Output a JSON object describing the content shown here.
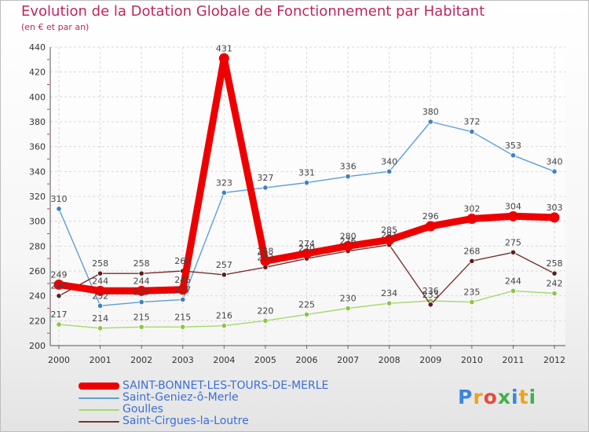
{
  "title": "Evolution de la Dotation Globale de Fonctionnement par Habitant",
  "subtitle": "(en € et par an)",
  "logo": {
    "text": "Proxiti",
    "letter_colors": [
      "#3a86e0",
      "#f0a11c",
      "#e84a3a",
      "#43b04a",
      "#3a86e0",
      "#f0a11c",
      "#43b04a"
    ]
  },
  "chart_data": {
    "type": "line",
    "title": "Evolution de la Dotation Globale de Fonctionnement par Habitant",
    "subtitle": "(en € et par an)",
    "xlabel": "",
    "ylabel": "",
    "x": [
      "2000",
      "2001",
      "2002",
      "2003",
      "2004",
      "2005",
      "2006",
      "2007",
      "2008",
      "2009",
      "2010",
      "2011",
      "2012"
    ],
    "ylim": [
      200,
      440
    ],
    "yticks": [
      200,
      220,
      240,
      260,
      280,
      300,
      320,
      340,
      360,
      380,
      400,
      420,
      440
    ],
    "grid": true,
    "legend_position": "bottom-left",
    "series": [
      {
        "name": "Saint-Geniez-ô-Merle",
        "color": "#5f9fd6",
        "marker": "#3d82c4",
        "emphasis": false,
        "values": [
          310,
          232,
          235,
          237,
          323,
          327,
          331,
          336,
          340,
          380,
          372,
          353,
          340
        ],
        "labels": [
          "310",
          "232",
          "235",
          "237",
          "323",
          "327",
          "331",
          "336",
          "340",
          "380",
          "372",
          "353",
          "340"
        ]
      },
      {
        "name": "Goulles",
        "color": "#a6d86e",
        "marker": "#8cc63f",
        "emphasis": false,
        "values": [
          217,
          214,
          215,
          215,
          216,
          220,
          225,
          230,
          234,
          236,
          235,
          244,
          242
        ],
        "labels": [
          "217",
          "214",
          "215",
          "215",
          "216",
          "220",
          "225",
          "230",
          "234",
          "236",
          "235",
          "244",
          "242"
        ]
      },
      {
        "name": "Saint-Cirgues-la-Loutre",
        "color": "#7a3030",
        "marker": "#5c1f1f",
        "emphasis": false,
        "values": [
          240,
          258,
          258,
          260,
          257,
          263,
          270,
          276,
          281,
          233,
          268,
          275,
          258
        ],
        "labels": [
          "240",
          "258",
          "258",
          "260",
          "257",
          "263",
          "270",
          "276",
          "281",
          "233",
          "268",
          "275",
          "258"
        ]
      },
      {
        "name": "SAINT-BONNET-LES-TOURS-DE-MERLE",
        "color": "#ee0000",
        "marker": "#ee0000",
        "emphasis": true,
        "values": [
          249,
          244,
          244,
          245,
          431,
          268,
          274,
          280,
          285,
          296,
          302,
          304,
          303
        ],
        "labels": [
          "249",
          "244",
          "244",
          "245",
          "431",
          "268",
          "274",
          "280",
          "285",
          "296",
          "302",
          "304",
          "303"
        ]
      }
    ],
    "legend_order": [
      3,
      0,
      1,
      2
    ]
  }
}
